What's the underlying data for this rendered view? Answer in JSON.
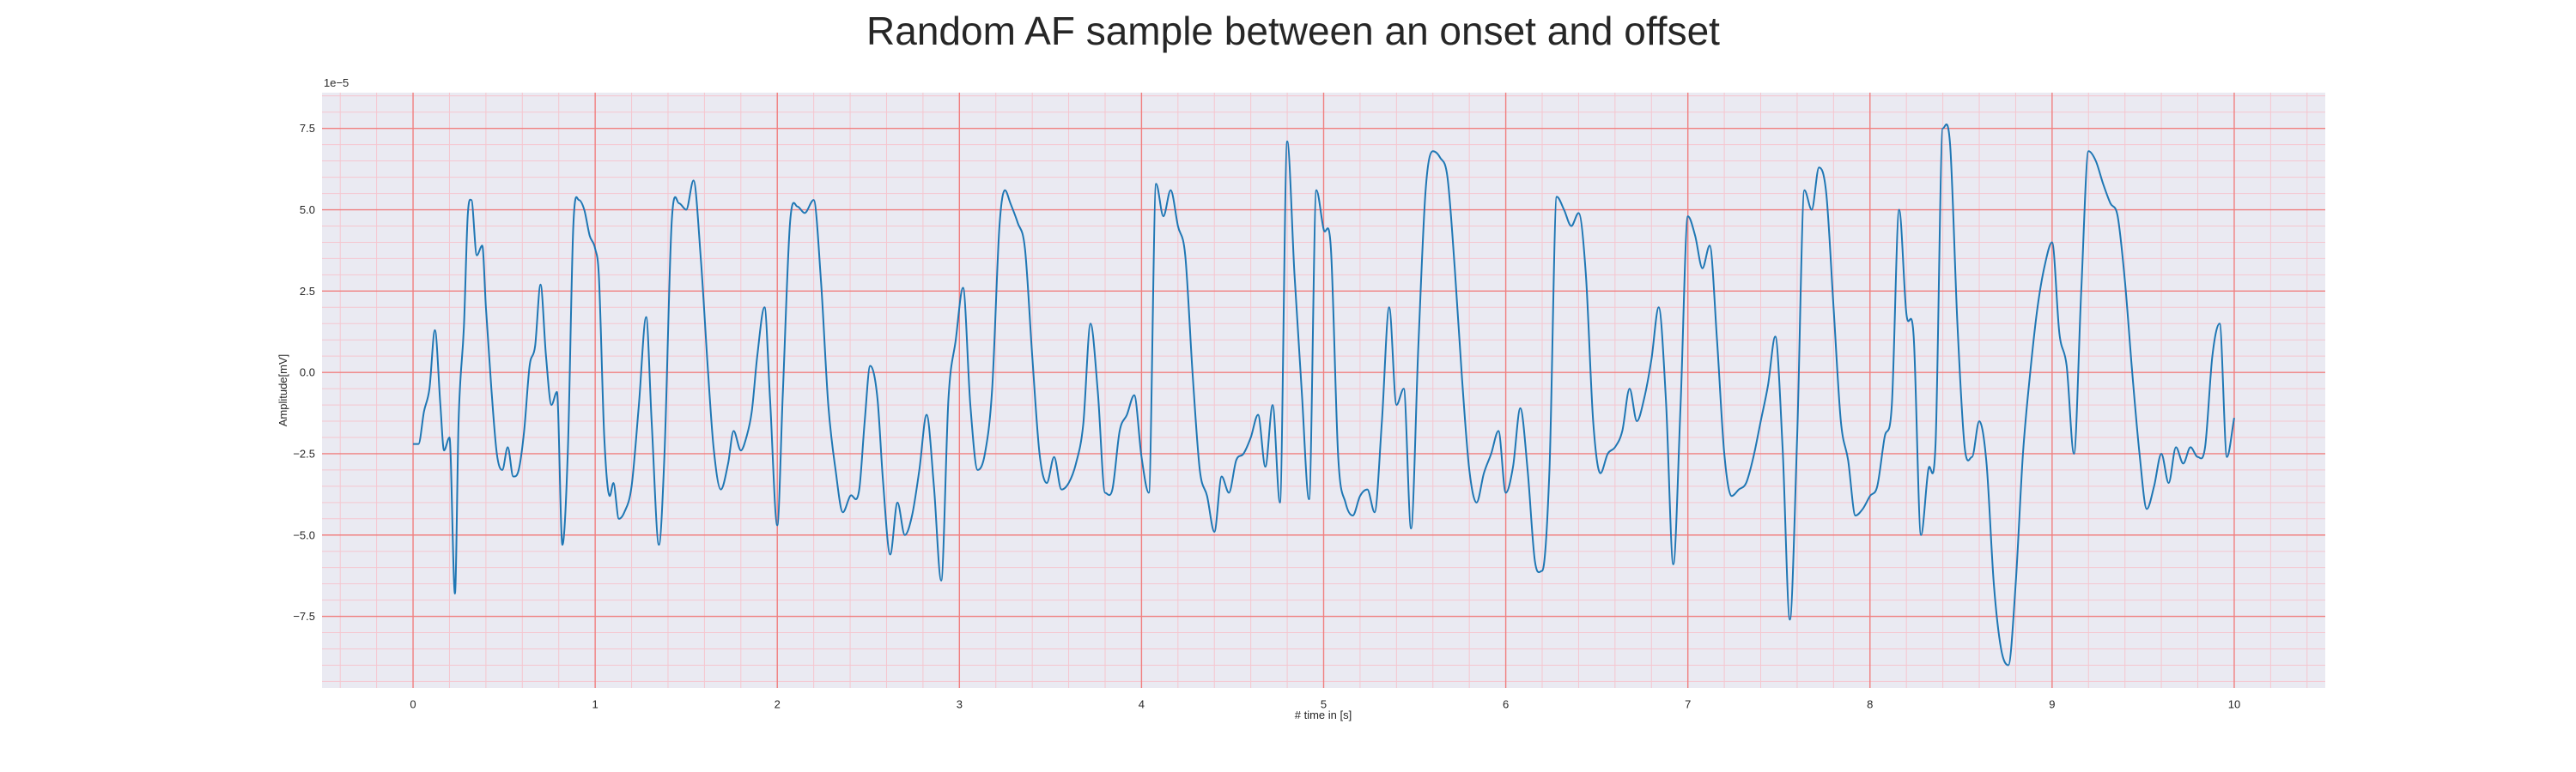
{
  "chart_data": {
    "type": "line",
    "title": "Random AF sample between an onset and offset",
    "xlabel": "# time in [s]",
    "ylabel": "Amplitude[mV]",
    "y_offset_label": "1e−5",
    "xlim": [
      -0.5,
      10.5
    ],
    "ylim": [
      -9.7,
      8.6
    ],
    "x_ticks": [
      0,
      1,
      2,
      3,
      4,
      5,
      6,
      7,
      8,
      9,
      10
    ],
    "x_tick_labels": [
      "0",
      "1",
      "2",
      "3",
      "4",
      "5",
      "6",
      "7",
      "8",
      "9",
      "10"
    ],
    "y_ticks": [
      7.5,
      5.0,
      2.5,
      0.0,
      -2.5,
      -5.0,
      -7.5
    ],
    "y_tick_labels": [
      "7.5",
      "5.0",
      "2.5",
      "0.0",
      "−2.5",
      "−5.0",
      "−7.5"
    ],
    "grid": {
      "major": true,
      "minor": true,
      "major_color": "#f08080",
      "minor_color": "#f5c6cf"
    },
    "colors": {
      "background": "#eaeaf2",
      "line": "#1f77b4"
    },
    "series": [
      {
        "x": [
          0.0,
          0.03,
          0.06,
          0.09,
          0.12,
          0.15,
          0.17,
          0.2,
          0.23,
          0.25,
          0.28,
          0.3,
          0.32,
          0.35,
          0.38,
          0.4,
          0.43,
          0.46,
          0.49,
          0.52,
          0.55,
          0.58,
          0.61,
          0.64,
          0.67,
          0.7,
          0.73,
          0.76,
          0.79,
          0.82,
          0.85,
          0.88,
          0.91,
          0.94,
          0.97,
          1.0,
          1.02,
          1.05,
          1.08,
          1.1,
          1.13,
          1.16,
          1.2,
          1.24,
          1.28,
          1.31,
          1.35,
          1.38,
          1.42,
          1.46,
          1.5,
          1.54,
          1.58,
          1.62,
          1.65,
          1.69,
          1.73,
          1.76,
          1.8,
          1.83,
          1.86,
          1.89,
          1.93,
          1.96,
          2.0,
          2.03,
          2.07,
          2.11,
          2.15,
          2.2,
          2.24,
          2.28,
          2.32,
          2.36,
          2.4,
          2.45,
          2.48,
          2.51,
          2.55,
          2.58,
          2.62,
          2.66,
          2.7,
          2.74,
          2.78,
          2.82,
          2.86,
          2.9,
          2.94,
          2.98,
          3.02,
          3.06,
          3.1,
          3.14,
          3.18,
          3.22,
          3.25,
          3.28,
          3.32,
          3.36,
          3.4,
          3.44,
          3.48,
          3.52,
          3.56,
          3.6,
          3.64,
          3.68,
          3.72,
          3.76,
          3.8,
          3.84,
          3.88,
          3.92,
          3.96,
          4.0,
          4.04,
          4.08,
          4.12,
          4.16,
          4.2,
          4.24,
          4.28,
          4.32,
          4.36,
          4.4,
          4.44,
          4.48,
          4.52,
          4.56,
          4.6,
          4.64,
          4.68,
          4.72,
          4.76,
          4.8,
          4.84,
          4.88,
          4.92,
          4.96,
          5.0,
          5.04,
          5.08,
          5.12,
          5.16,
          5.2,
          5.24,
          5.28,
          5.32,
          5.36,
          5.4,
          5.44,
          5.48,
          5.52,
          5.56,
          5.6,
          5.64,
          5.68,
          5.72,
          5.76,
          5.8,
          5.84,
          5.88,
          5.92,
          5.96,
          6.0,
          6.04,
          6.08,
          6.12,
          6.16,
          6.2,
          6.24,
          6.28,
          6.32,
          6.36,
          6.4,
          6.44,
          6.48,
          6.52,
          6.56,
          6.6,
          6.64,
          6.68,
          6.72,
          6.76,
          6.8,
          6.84,
          6.88,
          6.92,
          6.96,
          7.0,
          7.04,
          7.08,
          7.12,
          7.16,
          7.2,
          7.24,
          7.28,
          7.32,
          7.36,
          7.4,
          7.44,
          7.48,
          7.52,
          7.56,
          7.6,
          7.64,
          7.68,
          7.72,
          7.76,
          7.8,
          7.84,
          7.88,
          7.92,
          7.96,
          8.0,
          8.04,
          8.08,
          8.12,
          8.16,
          8.2,
          8.24,
          8.28,
          8.32,
          8.36,
          8.4,
          8.44,
          8.48,
          8.52,
          8.56,
          8.6,
          8.64,
          8.68,
          8.72,
          8.76,
          8.8,
          8.84,
          8.88,
          8.92,
          8.96,
          9.0,
          9.04,
          9.08,
          9.12,
          9.16,
          9.2,
          9.24,
          9.28,
          9.32,
          9.36,
          9.4,
          9.44,
          9.48,
          9.52,
          9.56,
          9.6,
          9.64,
          9.68,
          9.72,
          9.76,
          9.8,
          9.84,
          9.88,
          9.92,
          9.96,
          10.0
        ],
        "y": [
          -2.2,
          -2.2,
          -1.2,
          -0.5,
          1.3,
          -1.0,
          -2.4,
          -2.0,
          -6.8,
          -1.5,
          1.5,
          4.8,
          5.3,
          3.6,
          3.9,
          2.0,
          -0.5,
          -2.5,
          -3.0,
          -2.3,
          -3.2,
          -3.0,
          -1.8,
          0.2,
          0.8,
          2.7,
          0.5,
          -1.0,
          -0.6,
          -5.3,
          -2.4,
          4.5,
          5.3,
          5.0,
          4.2,
          3.8,
          3.0,
          -2.0,
          -3.8,
          -3.4,
          -4.5,
          -4.3,
          -3.5,
          -1.0,
          1.7,
          -1.5,
          -5.3,
          -2.6,
          4.6,
          5.2,
          5.0,
          5.9,
          3.5,
          0.0,
          -2.3,
          -3.6,
          -2.8,
          -1.8,
          -2.4,
          -2.0,
          -1.2,
          0.5,
          2.0,
          -0.8,
          -4.7,
          -0.7,
          4.6,
          5.1,
          4.9,
          5.3,
          2.8,
          -1.0,
          -3.0,
          -4.3,
          -3.8,
          -3.6,
          -1.5,
          0.2,
          -0.8,
          -3.3,
          -5.6,
          -4.0,
          -5.0,
          -4.4,
          -3.0,
          -1.3,
          -3.5,
          -6.4,
          -0.8,
          1.0,
          2.6,
          -1.0,
          -3.0,
          -2.5,
          -0.5,
          4.5,
          5.6,
          5.2,
          4.6,
          3.8,
          0.5,
          -2.5,
          -3.4,
          -2.6,
          -3.6,
          -3.4,
          -2.8,
          -1.6,
          1.5,
          -0.6,
          -3.7,
          -3.6,
          -1.8,
          -1.3,
          -0.7,
          -2.6,
          -3.7,
          5.8,
          4.8,
          5.6,
          4.5,
          3.6,
          0.0,
          -3.0,
          -3.8,
          -4.9,
          -3.2,
          -3.7,
          -2.7,
          -2.5,
          -2.0,
          -1.3,
          -2.9,
          -1.0,
          -4.0,
          7.1,
          3.0,
          -0.6,
          -3.9,
          5.6,
          4.4,
          3.8,
          -2.6,
          -4.0,
          -4.4,
          -3.8,
          -3.6,
          -4.3,
          -1.5,
          2.0,
          -1.0,
          -0.5,
          -4.8,
          0.8,
          5.6,
          6.8,
          6.6,
          6.0,
          3.2,
          -0.2,
          -3.0,
          -4.0,
          -3.1,
          -2.5,
          -1.8,
          -3.7,
          -2.9,
          -1.1,
          -3.0,
          -5.8,
          -6.1,
          -3.0,
          5.4,
          5.0,
          4.5,
          4.9,
          3.0,
          -1.5,
          -3.1,
          -2.5,
          -2.3,
          -1.8,
          -0.5,
          -1.5,
          -0.8,
          0.4,
          2.0,
          -0.9,
          -5.9,
          -1.0,
          4.8,
          4.2,
          3.2,
          3.9,
          1.0,
          -2.5,
          -3.8,
          -3.6,
          -3.4,
          -2.6,
          -1.5,
          -0.4,
          1.1,
          -2.3,
          -7.6,
          -2.0,
          5.6,
          5.0,
          6.3,
          5.5,
          2.0,
          -1.5,
          -2.7,
          -4.4,
          -4.2,
          -3.8,
          -3.5,
          -2.0,
          -1.0,
          5.0,
          1.8,
          1.1,
          -5.0,
          -3.0,
          -2.2,
          7.5,
          7.0,
          1.5,
          -2.3,
          -2.6,
          -1.5,
          -2.8,
          -6.5,
          -8.5,
          -9.0,
          -6.5,
          -2.5,
          0.0,
          2.0,
          3.3,
          4.0,
          1.2,
          0.2,
          -2.5,
          2.5,
          6.8,
          6.5,
          5.8,
          5.2,
          4.8,
          2.8,
          0.0,
          -2.5,
          -4.2,
          -3.5,
          -2.5,
          -3.4,
          -2.3,
          -2.8,
          -2.3,
          -2.6,
          -2.3,
          0.5,
          1.5,
          -2.6,
          -1.4
        ]
      }
    ]
  }
}
